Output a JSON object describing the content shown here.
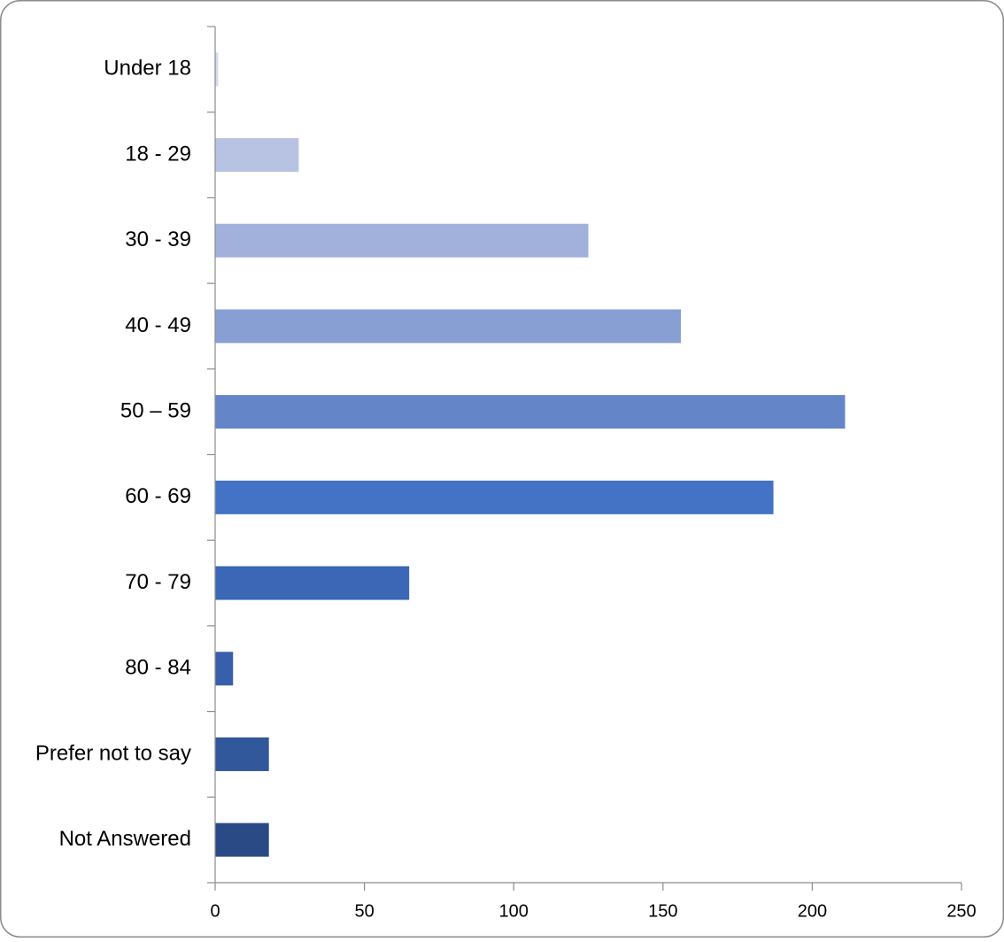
{
  "chart_data": {
    "type": "bar",
    "orientation": "horizontal",
    "title": "",
    "xlabel": "",
    "ylabel": "",
    "categories": [
      "Under 18",
      "18 - 29",
      "30 - 39",
      "40 - 49",
      "50 – 59",
      "60 - 69",
      "70 - 79",
      "80 - 84",
      "Prefer not to say",
      "Not Answered"
    ],
    "values": [
      1,
      28,
      125,
      156,
      211,
      187,
      65,
      6,
      18,
      18
    ],
    "xlim": [
      0,
      250
    ],
    "xticks": [
      0,
      50,
      100,
      150,
      200,
      250
    ],
    "xtick_labels": [
      "0",
      "50",
      "100",
      "150",
      "200",
      "250"
    ],
    "grid": false,
    "legend": "none",
    "colors": [
      "#d4daef",
      "#b8c3e4",
      "#a2b1db",
      "#889fd4",
      "#6585c9",
      "#4472c4",
      "#3b67b6",
      "#385fac",
      "#31589a",
      "#2a4a86"
    ],
    "axis_color": "#8c8c8c",
    "frame_color": "#8c8c8c"
  }
}
